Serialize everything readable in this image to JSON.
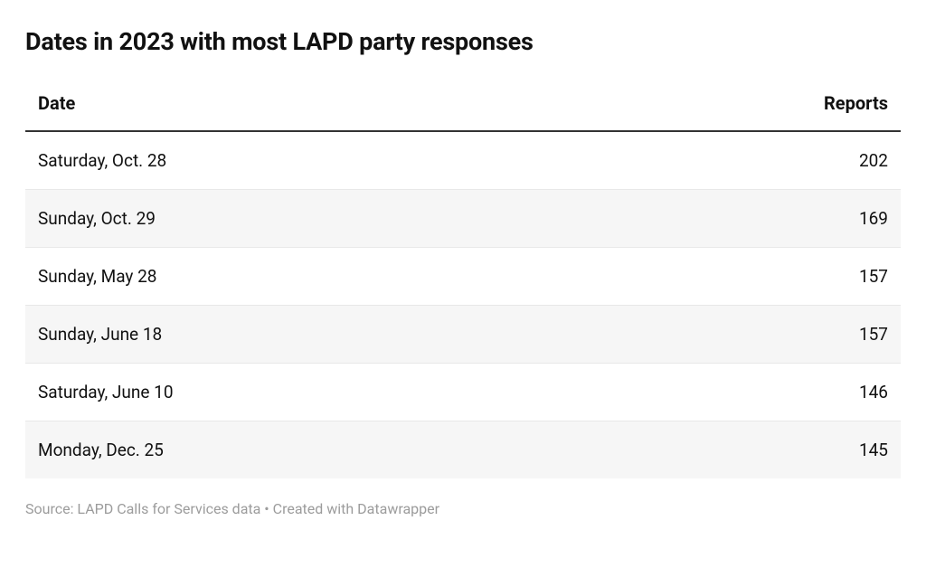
{
  "type": "table",
  "title": "Dates in 2023 with most LAPD party responses",
  "title_fontsize": 27,
  "title_fontweight": 700,
  "title_color": "#111111",
  "columns": [
    {
      "key": "date",
      "label": "Date",
      "align": "left"
    },
    {
      "key": "reports",
      "label": "Reports",
      "align": "right"
    }
  ],
  "rows": [
    {
      "date": "Saturday, Oct. 28",
      "reports": "202"
    },
    {
      "date": "Sunday, Oct. 29",
      "reports": "169"
    },
    {
      "date": "Sunday, May 28",
      "reports": "157"
    },
    {
      "date": "Sunday, June 18",
      "reports": "157"
    },
    {
      "date": "Saturday, June 10",
      "reports": "146"
    },
    {
      "date": "Monday, Dec. 25",
      "reports": "145"
    }
  ],
  "header_border_color": "#333333",
  "header_border_width": 2,
  "row_border_color": "#e8e8e8",
  "row_stripe_color": "#f6f6f6",
  "background_color": "#ffffff",
  "body_fontsize": 19,
  "header_fontsize": 20,
  "text_color": "#111111",
  "source_text": "Source: LAPD Calls for Services data • Created with Datawrapper",
  "source_color": "#9c9c9c",
  "source_fontsize": 16
}
